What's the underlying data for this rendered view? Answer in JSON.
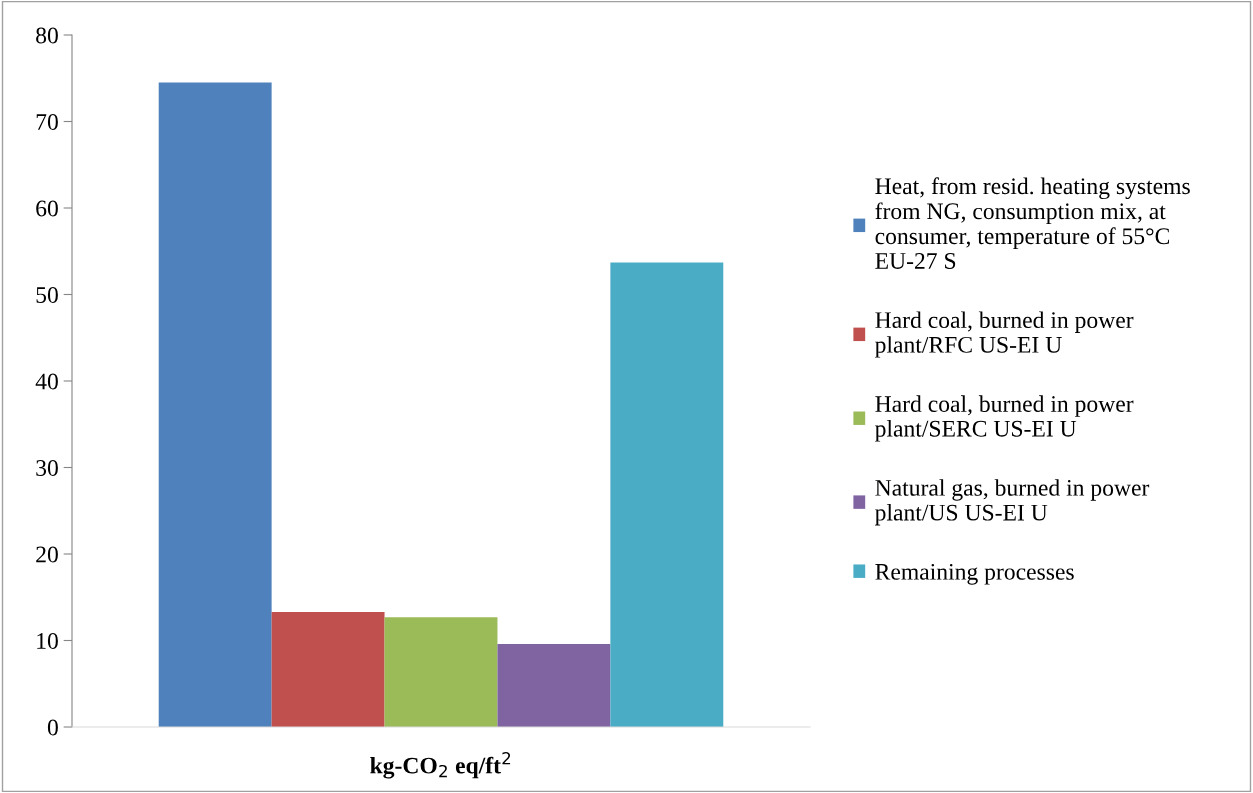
{
  "chart_data": {
    "type": "bar",
    "categories": [
      "kg-CO$_{2}$ eq/ft$^{2}$"
    ],
    "series": [
      {
        "name": "Heat, from resid. heating systems\nfrom NG, consumption mix, at\nconsumer, temperature of 55°C\nEU-27 S",
        "color": "#4f81bd",
        "values": [
          74.5
        ]
      },
      {
        "name": "Hard coal, burned in power\nplant/RFC US-EI U",
        "color": "#c0504d",
        "values": [
          13.3
        ]
      },
      {
        "name": "Hard coal, burned in power\nplant/SERC US-EI U",
        "color": "#9bbb59",
        "values": [
          12.7
        ]
      },
      {
        "name": "Natural gas, burned in power\nplant/US US-EI U",
        "color": "#8064a2",
        "values": [
          9.6
        ]
      },
      {
        "name": "Remaining processes",
        "color": "#4bacc6",
        "values": [
          53.7
        ]
      }
    ],
    "ylim": [
      0,
      80
    ],
    "yticks": [
      0,
      10,
      20,
      30,
      40,
      50,
      60,
      70,
      80
    ],
    "grid": false,
    "legend": "right"
  }
}
